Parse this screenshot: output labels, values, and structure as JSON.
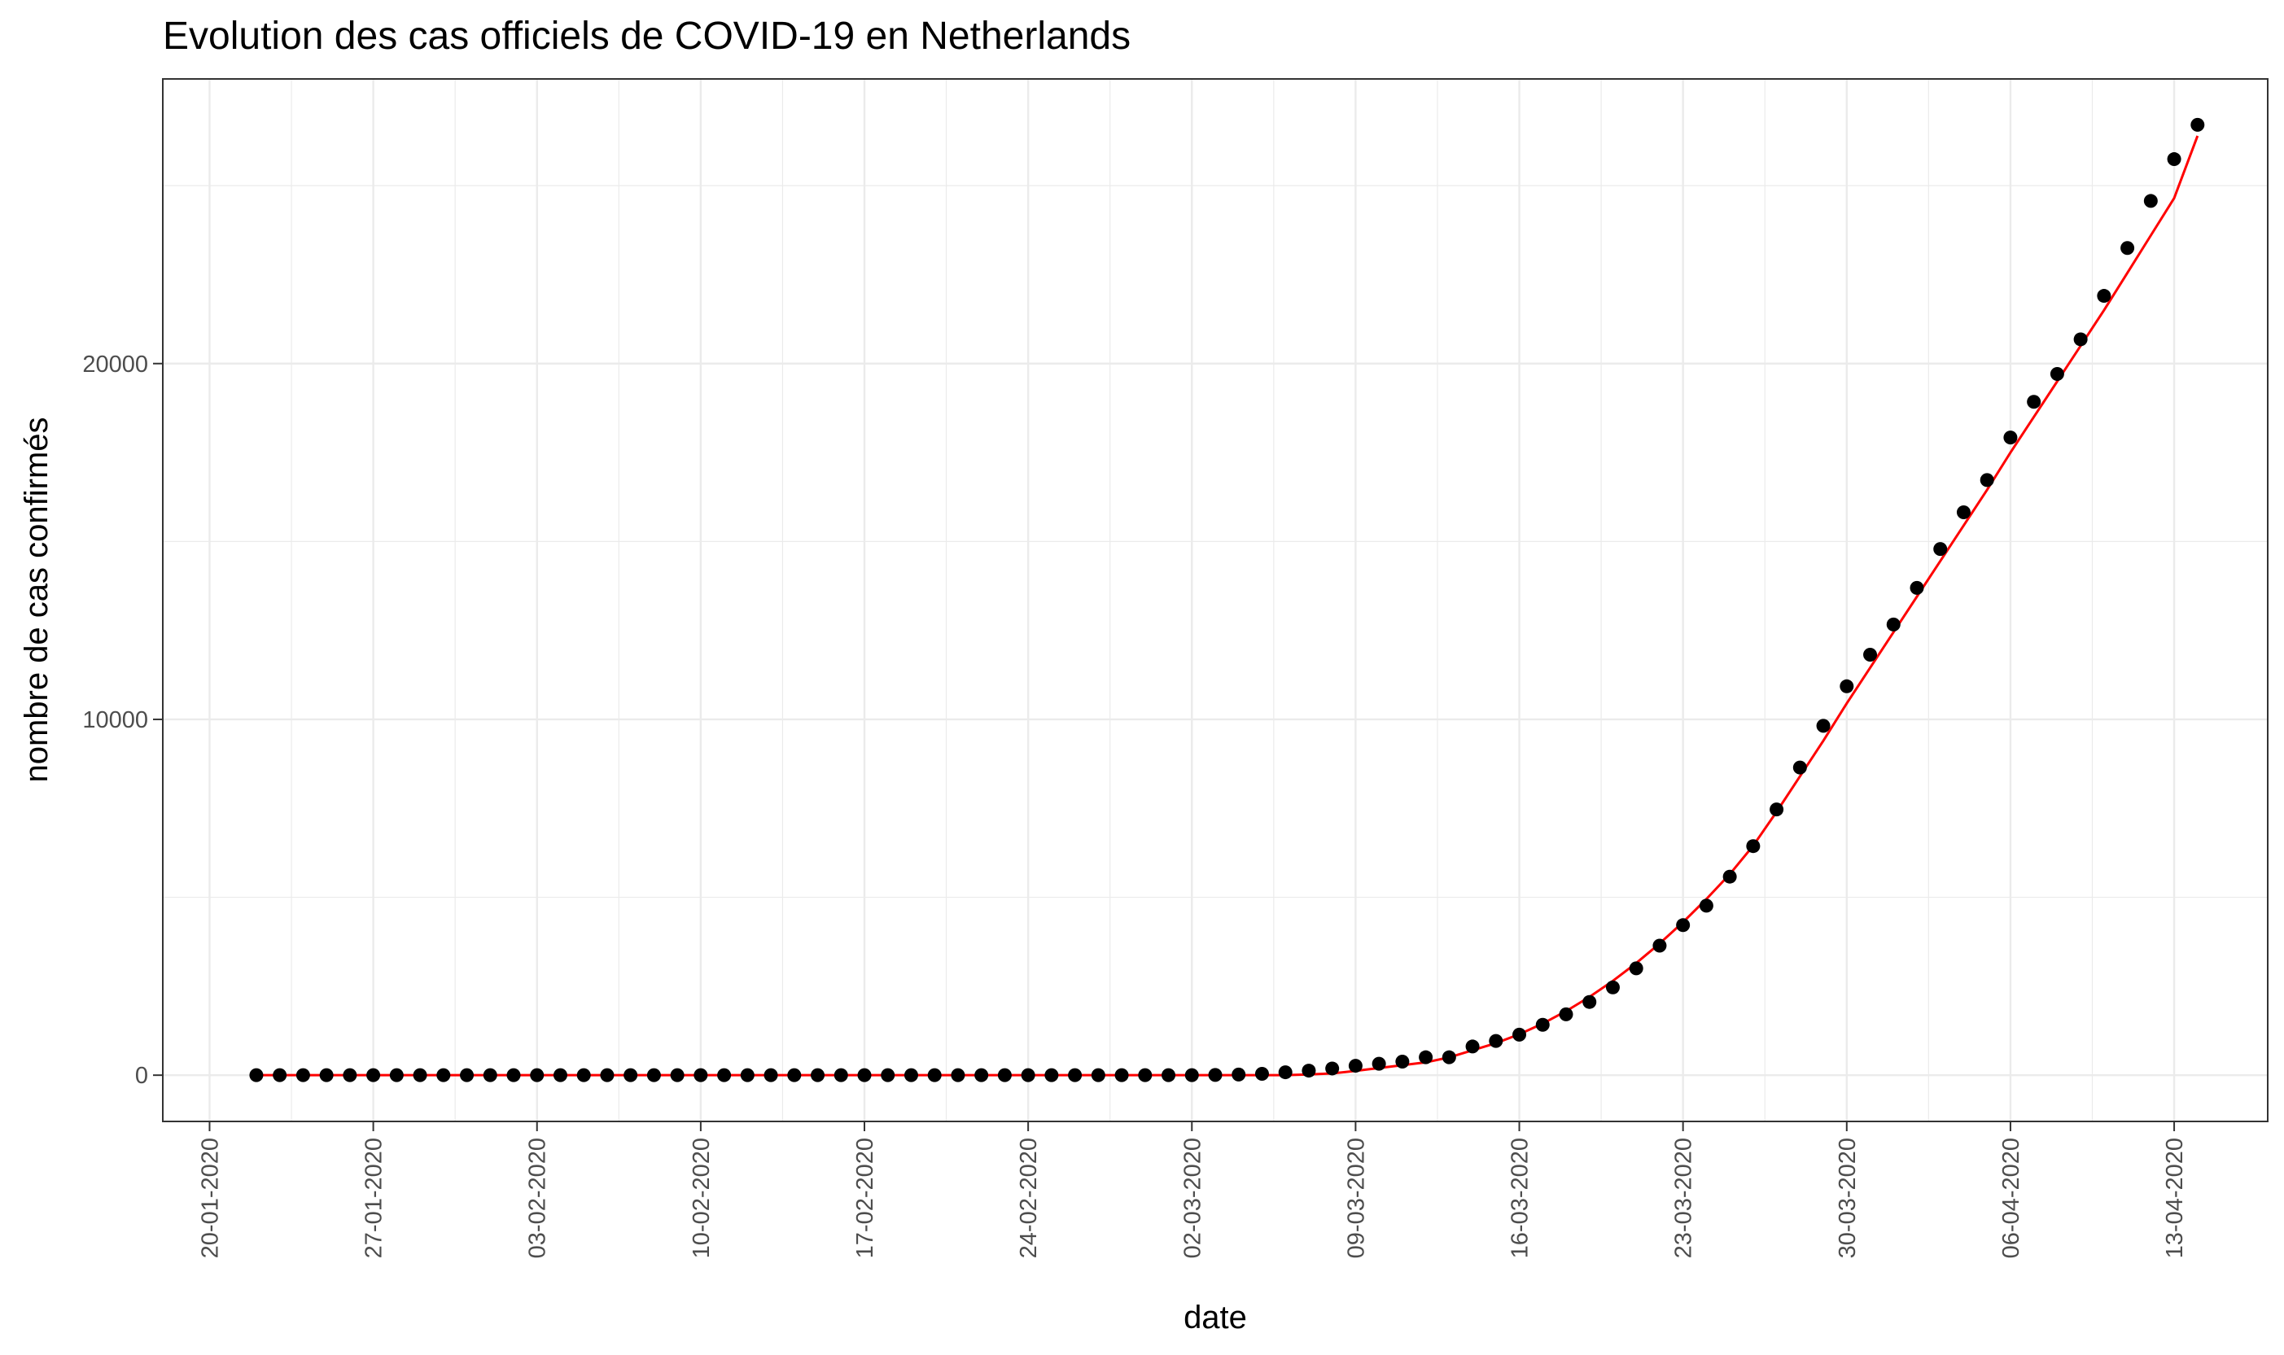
{
  "chart_data": {
    "type": "scatter",
    "title": "Evolution des cas officiels de COVID-19 en Netherlands",
    "xlabel": "date",
    "ylabel": "nombre de cas confirmés",
    "x_tick_labels": [
      "20-01-2020",
      "27-01-2020",
      "03-02-2020",
      "10-02-2020",
      "17-02-2020",
      "24-02-2020",
      "02-03-2020",
      "09-03-2020",
      "16-03-2020",
      "23-03-2020",
      "30-03-2020",
      "06-04-2020",
      "13-04-2020"
    ],
    "y_ticks": [
      0,
      10000,
      20000
    ],
    "y_tick_labels": [
      "0",
      "10000",
      "20000"
    ],
    "xlim": [
      "2020-01-18",
      "2020-04-17"
    ],
    "ylim": [
      -1300,
      28000
    ],
    "grid": true,
    "colors": {
      "points": "#000000",
      "fit": "#ff0000",
      "grid": "#ebebeb",
      "panel_border": "#333333"
    },
    "series": [
      {
        "type": "scatter",
        "start_date": "2020-01-22",
        "values": [
          0,
          0,
          0,
          0,
          0,
          0,
          0,
          0,
          0,
          0,
          0,
          0,
          0,
          0,
          0,
          0,
          0,
          0,
          0,
          0,
          0,
          0,
          0,
          0,
          0,
          0,
          0,
          0,
          0,
          0,
          0,
          0,
          0,
          0,
          0,
          0,
          0,
          0,
          0,
          0,
          1,
          6,
          18,
          38,
          82,
          128,
          188,
          265,
          321,
          382,
          503,
          503,
          806,
          962,
          1138,
          1416,
          1711,
          2058,
          2467,
          3003,
          3640,
          4217,
          4764,
          5580,
          6438,
          7468,
          8647,
          9819,
          10930,
          11817,
          12667,
          13696,
          14788,
          15821,
          16727,
          17921,
          18926,
          19709,
          20682,
          21903,
          23249,
          24571,
          25746,
          26710
        ]
      },
      {
        "type": "line",
        "start_date": "2020-01-22",
        "values": [
          0,
          0,
          0,
          0,
          0,
          0,
          0,
          0,
          0,
          0,
          0,
          0,
          0,
          0,
          0,
          0,
          0,
          0,
          0,
          0,
          0,
          0,
          0,
          0,
          0,
          0,
          0,
          0,
          0,
          0,
          0,
          0,
          0,
          0,
          0,
          0,
          0,
          0,
          0,
          0,
          0,
          0,
          0,
          0,
          0,
          20,
          50,
          120,
          200,
          280,
          360,
          500,
          700,
          900,
          1150,
          1450,
          1800,
          2200,
          2650,
          3150,
          3700,
          4300,
          4950,
          5650,
          6450,
          7400,
          8400,
          9400,
          10450,
          11450,
          12450,
          13450,
          14450,
          15450,
          16450,
          17500,
          18500,
          19500,
          20500,
          21500,
          22550,
          23600,
          24650,
          26400
        ]
      }
    ]
  }
}
